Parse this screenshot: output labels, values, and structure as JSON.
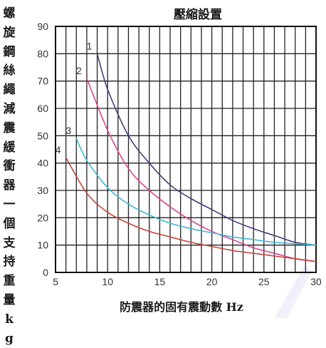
{
  "chart_data": {
    "type": "line",
    "title": "壓縮設置",
    "xlabel": "防震器的固有震動數 Hz",
    "ylabel": "螺旋鋼絲繩減震緩衝器一個支持重量kg",
    "xlim": [
      5,
      30
    ],
    "ylim": [
      0,
      90
    ],
    "xticks": [
      "5",
      "10",
      "15",
      "20",
      "25",
      "30"
    ],
    "yticks": [
      "0",
      "10",
      "20",
      "30",
      "40",
      "50",
      "60",
      "70",
      "80",
      "90"
    ],
    "grid": true,
    "series": [
      {
        "name": "1",
        "color": "#4a3a7a",
        "x": [
          9,
          10,
          12,
          14,
          16,
          18,
          20,
          22,
          24,
          26,
          28,
          30
        ],
        "y": [
          80,
          67,
          50,
          40,
          32,
          27,
          23,
          19,
          16,
          13.5,
          11,
          10
        ]
      },
      {
        "name": "2",
        "color": "#d9478f",
        "x": [
          8,
          10,
          12,
          14,
          16,
          18,
          20,
          22,
          24,
          26,
          28,
          30
        ],
        "y": [
          71,
          52,
          38,
          30,
          24,
          19,
          15,
          12,
          9,
          7,
          5,
          4
        ]
      },
      {
        "name": "3",
        "color": "#3fb8d1",
        "x": [
          7,
          8,
          10,
          12,
          14,
          16,
          18,
          20,
          22,
          24,
          26,
          28,
          30
        ],
        "y": [
          49,
          41,
          31,
          25,
          21,
          18,
          16,
          14.5,
          13,
          12,
          11,
          10.5,
          10
        ]
      },
      {
        "name": "4",
        "color": "#c8453a",
        "x": [
          6,
          8,
          10,
          12,
          14,
          16,
          18,
          20,
          22,
          24,
          26,
          28,
          30
        ],
        "y": [
          42,
          29,
          22,
          18,
          15,
          13,
          11,
          9.5,
          8,
          7,
          6,
          5,
          4
        ]
      }
    ]
  }
}
